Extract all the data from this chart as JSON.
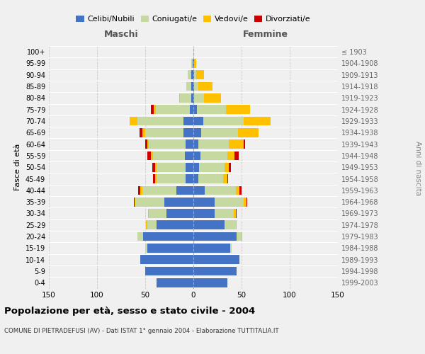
{
  "age_groups": [
    "0-4",
    "5-9",
    "10-14",
    "15-19",
    "20-24",
    "25-29",
    "30-34",
    "35-39",
    "40-44",
    "45-49",
    "50-54",
    "55-59",
    "60-64",
    "65-69",
    "70-74",
    "75-79",
    "80-84",
    "85-89",
    "90-94",
    "95-99",
    "100+"
  ],
  "birth_years": [
    "1999-2003",
    "1994-1998",
    "1989-1993",
    "1984-1988",
    "1979-1983",
    "1974-1978",
    "1969-1973",
    "1964-1968",
    "1959-1963",
    "1954-1958",
    "1949-1953",
    "1944-1948",
    "1939-1943",
    "1934-1938",
    "1929-1933",
    "1924-1928",
    "1919-1923",
    "1914-1918",
    "1909-1913",
    "1904-1908",
    "≤ 1903"
  ],
  "male": {
    "celibi": [
      38,
      50,
      55,
      48,
      52,
      38,
      28,
      30,
      18,
      8,
      8,
      9,
      8,
      10,
      10,
      4,
      2,
      2,
      2,
      1,
      0
    ],
    "coniugati": [
      0,
      0,
      0,
      2,
      6,
      10,
      18,
      30,
      35,
      30,
      30,
      33,
      38,
      40,
      48,
      35,
      12,
      5,
      4,
      1,
      0
    ],
    "vedovi": [
      0,
      0,
      0,
      0,
      0,
      1,
      1,
      1,
      2,
      2,
      2,
      2,
      2,
      3,
      8,
      2,
      1,
      0,
      0,
      0,
      0
    ],
    "divorziati": [
      0,
      0,
      0,
      0,
      0,
      0,
      0,
      1,
      2,
      2,
      3,
      4,
      2,
      3,
      0,
      3,
      0,
      0,
      0,
      0,
      0
    ]
  },
  "female": {
    "nubili": [
      35,
      45,
      48,
      38,
      45,
      32,
      22,
      22,
      12,
      5,
      6,
      7,
      5,
      8,
      10,
      4,
      1,
      1,
      1,
      1,
      0
    ],
    "coniugate": [
      0,
      0,
      0,
      2,
      5,
      12,
      20,
      30,
      32,
      26,
      26,
      28,
      32,
      38,
      42,
      30,
      10,
      4,
      2,
      0,
      0
    ],
    "vedove": [
      0,
      0,
      0,
      0,
      1,
      1,
      2,
      3,
      4,
      4,
      5,
      8,
      15,
      22,
      28,
      25,
      18,
      15,
      8,
      2,
      0
    ],
    "divorziate": [
      0,
      0,
      0,
      0,
      0,
      0,
      1,
      1,
      2,
      1,
      2,
      4,
      2,
      0,
      0,
      0,
      0,
      0,
      0,
      0,
      0
    ]
  },
  "colors": {
    "celibi_nubili": "#4472c4",
    "coniugati": "#c5d9a0",
    "vedovi": "#ffc000",
    "divorziati": "#cc0000"
  },
  "title": "Popolazione per età, sesso e stato civile - 2004",
  "subtitle": "COMUNE DI PIETRADEFUSI (AV) - Dati ISTAT 1° gennaio 2004 - Elaborazione TUTTITALIA.IT",
  "ylabel": "Fasce di età",
  "right_label": "Anni di nascita",
  "xlim": 150,
  "background_color": "#f0f0f0",
  "plot_bg": "#f0f0f0"
}
